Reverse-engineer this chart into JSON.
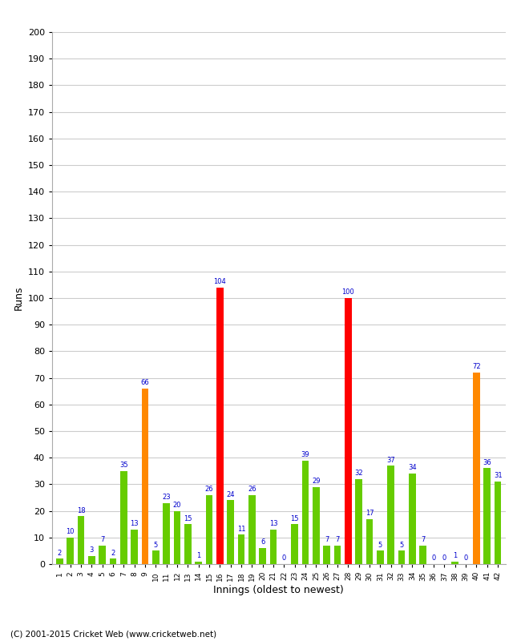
{
  "xlabel": "Innings (oldest to newest)",
  "ylabel": "Runs",
  "footer": "(C) 2001-2015 Cricket Web (www.cricketweb.net)",
  "ylim": [
    0,
    200
  ],
  "yticks": [
    0,
    10,
    20,
    30,
    40,
    50,
    60,
    70,
    80,
    90,
    100,
    110,
    120,
    130,
    140,
    150,
    160,
    170,
    180,
    190,
    200
  ],
  "values": [
    2,
    10,
    18,
    3,
    7,
    2,
    35,
    13,
    66,
    5,
    23,
    20,
    15,
    1,
    26,
    104,
    24,
    11,
    26,
    6,
    13,
    0,
    15,
    39,
    29,
    7,
    7,
    100,
    32,
    17,
    5,
    37,
    5,
    34,
    7,
    0,
    0,
    1,
    0,
    72,
    36,
    31
  ],
  "colors": [
    "#66cc00",
    "#66cc00",
    "#66cc00",
    "#66cc00",
    "#66cc00",
    "#66cc00",
    "#66cc00",
    "#66cc00",
    "#ff8800",
    "#66cc00",
    "#66cc00",
    "#66cc00",
    "#66cc00",
    "#66cc00",
    "#66cc00",
    "#ff0000",
    "#66cc00",
    "#66cc00",
    "#66cc00",
    "#66cc00",
    "#66cc00",
    "#66cc00",
    "#66cc00",
    "#66cc00",
    "#66cc00",
    "#66cc00",
    "#66cc00",
    "#ff0000",
    "#66cc00",
    "#66cc00",
    "#66cc00",
    "#66cc00",
    "#66cc00",
    "#66cc00",
    "#66cc00",
    "#66cc00",
    "#66cc00",
    "#66cc00",
    "#66cc00",
    "#ff8800",
    "#66cc00",
    "#66cc00"
  ],
  "innings": [
    1,
    2,
    3,
    4,
    5,
    6,
    7,
    8,
    9,
    10,
    11,
    12,
    13,
    14,
    15,
    16,
    17,
    18,
    19,
    20,
    21,
    22,
    23,
    24,
    25,
    26,
    27,
    28,
    29,
    30,
    31,
    32,
    33,
    34,
    35,
    36,
    37,
    38,
    39,
    40,
    41,
    42
  ],
  "label_color": "#0000cc",
  "bg_color": "#ffffff",
  "grid_color": "#cccccc",
  "bar_width": 0.65
}
